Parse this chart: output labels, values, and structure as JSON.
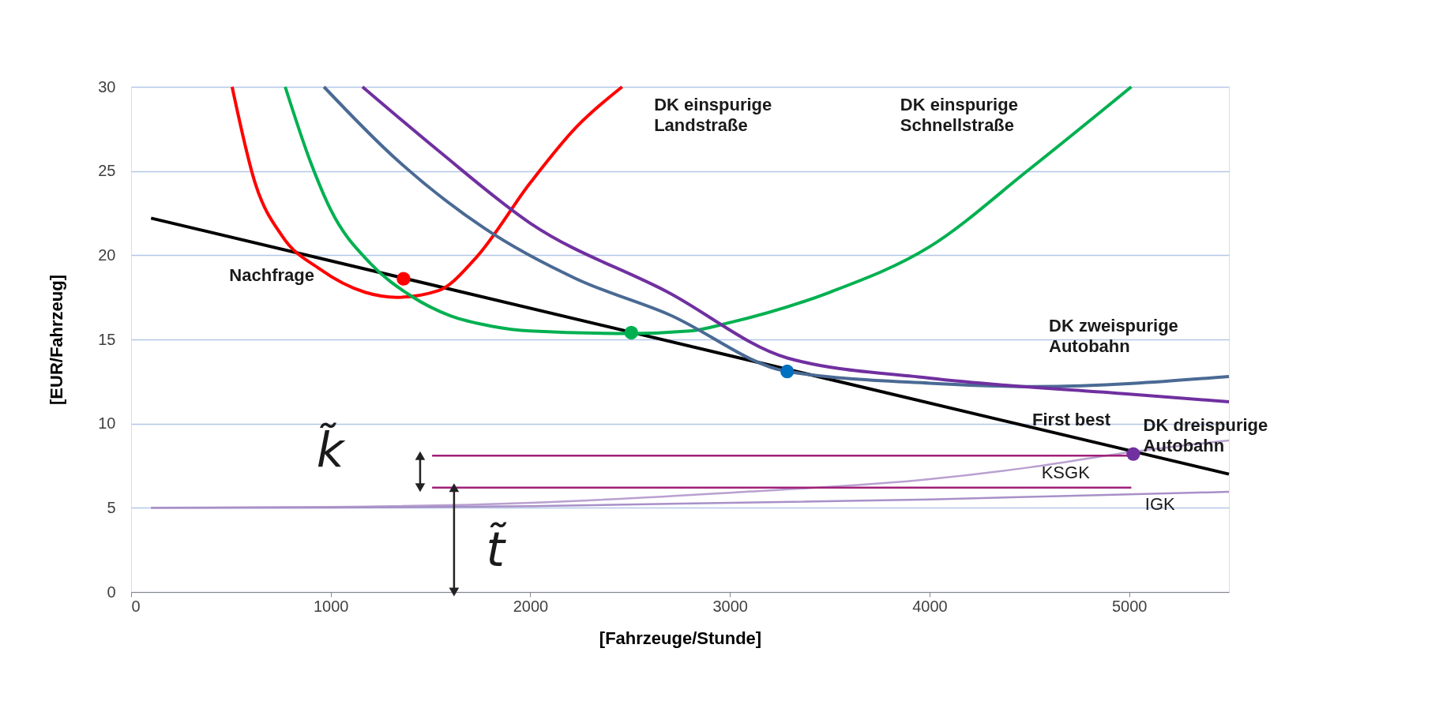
{
  "chart_data": {
    "type": "line",
    "xlabel": "[Fahrzeuge/Stunde]",
    "ylabel": "[EUR/Fahrzeug]",
    "xlim": [
      0,
      5500
    ],
    "ylim": [
      0,
      30
    ],
    "xticks": [
      0,
      1000,
      2000,
      3000,
      4000,
      5000
    ],
    "yticks": [
      0,
      5,
      10,
      15,
      20,
      25,
      30
    ],
    "grid": "y",
    "marker": "none",
    "line_style": "solid",
    "series": [
      {
        "color": "#000000",
        "x": [
          100,
          5500
        ],
        "values": [
          22.2,
          7.0
        ]
      },
      {
        "color": "#ff0000",
        "x": [
          506,
          621,
          759,
          943,
          1172,
          1333,
          1540,
          1724,
          2000,
          2230,
          2460
        ],
        "values": [
          30,
          24.3,
          21.1,
          19.2,
          17.8,
          17.5,
          17.9,
          19.8,
          24.3,
          27.6,
          30
        ]
      },
      {
        "color": "#00b050",
        "x": [
          772,
          900,
          1000,
          1200,
          1400,
          1600,
          1800,
          2000,
          2500,
          2800,
          3000,
          3500,
          4000,
          4500,
          5011
        ],
        "values": [
          30,
          25.5,
          22.7,
          19.5,
          17.6,
          16.4,
          15.8,
          15.5,
          15.35,
          15.5,
          16.0,
          17.8,
          20.5,
          25.1,
          30
        ]
      },
      {
        "color": "#4a6a94",
        "x": [
          966,
          1310,
          1770,
          2230,
          2690,
          3287,
          4000,
          4530,
          5500
        ],
        "values": [
          30,
          25.9,
          21.6,
          18.6,
          16.5,
          13.1,
          12.4,
          12.2,
          12.8
        ]
      },
      {
        "color": "#7030a0",
        "x": [
          1159,
          1540,
          2000,
          2690,
          3287,
          4000,
          5000,
          5500
        ],
        "values": [
          30,
          26.2,
          21.9,
          17.8,
          13.9,
          12.7,
          11.75,
          11.3
        ]
      },
      {
        "color": "#b9a0d0",
        "x": [
          100,
          1000,
          2000,
          3000,
          4000,
          4500,
          5000,
          5500
        ],
        "values": [
          5.0,
          5.05,
          5.3,
          5.9,
          6.7,
          7.4,
          8.3,
          9.0
        ]
      },
      {
        "color": "#a890c8",
        "x": [
          100,
          1000,
          2000,
          3000,
          4000,
          5000,
          5500
        ],
        "values": [
          5.0,
          5.02,
          5.1,
          5.3,
          5.5,
          5.8,
          5.95
        ]
      },
      {
        "color": "#a0207a",
        "x": [
          1508,
          5011
        ],
        "values": [
          8.1,
          8.1
        ]
      },
      {
        "color": "#a0207a",
        "x": [
          1508,
          5011
        ],
        "values": [
          6.2,
          6.2
        ]
      },
      {
        "type": "scatter",
        "marker": "circle",
        "x": [
          1365,
          2506,
          3287,
          5021
        ],
        "values": [
          18.6,
          15.4,
          13.1,
          8.2
        ],
        "colors": [
          "#ff0000",
          "#00b050",
          "#0070c0",
          "#7030a0"
        ]
      }
    ],
    "annotations": [
      "Nachfrage",
      "DK einspurige\nLandstraße",
      "DK einspurige\nSchnellstraße",
      "DK zweispurige\nAutobahn",
      "First best",
      "DK dreispurige\nAutobahn",
      "KSGK",
      "IGK",
      "k̃",
      "t̃"
    ]
  }
}
